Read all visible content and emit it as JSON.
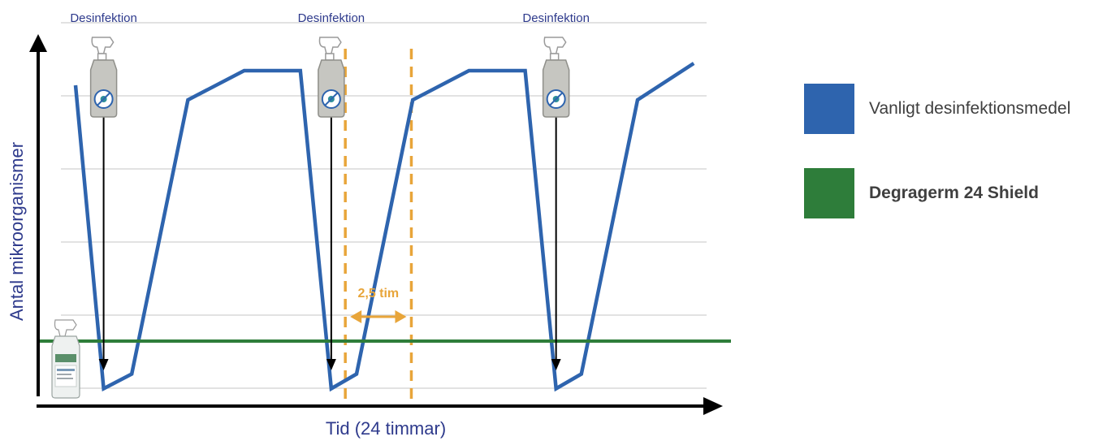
{
  "chart_data": {
    "type": "line",
    "xlabel": "Tid (24 timmar)",
    "ylabel": "Antal mikroorganismer",
    "disinfection_label": "Desinfektion",
    "disinfection_events": [
      {
        "label": "Desinfektion"
      },
      {
        "label": "Desinfektion"
      },
      {
        "label": "Desinfektion"
      }
    ],
    "annotation": {
      "text": "2,5 tim",
      "color": "#E8A53A"
    },
    "grid": true,
    "legend_position": "right",
    "series": [
      {
        "name": "Vanligt desinfektionsmedel",
        "color": "#2E64AE",
        "points": [
          [
            0.0,
            4.2
          ],
          [
            1.0,
            0.05
          ],
          [
            2.0,
            0.25
          ],
          [
            4.0,
            4.0
          ],
          [
            6.0,
            4.4
          ],
          [
            8.0,
            4.4
          ],
          [
            9.1,
            0.05
          ],
          [
            10.0,
            0.25
          ],
          [
            12.0,
            4.0
          ],
          [
            14.0,
            4.4
          ],
          [
            16.0,
            4.4
          ],
          [
            17.1,
            0.05
          ],
          [
            18.0,
            0.25
          ],
          [
            20.0,
            4.0
          ],
          [
            22.0,
            4.5
          ]
        ]
      },
      {
        "name": "Degragerm 24 Shield",
        "color": "#2E7D3A",
        "points": [
          [
            -1.0,
            0.7
          ],
          [
            23.0,
            0.7
          ]
        ]
      }
    ]
  },
  "legend": {
    "items": [
      {
        "label": "Vanligt desinfektionsmedel",
        "color": "#2E64AE",
        "bold": false
      },
      {
        "label": "Degragerm 24 Shield",
        "color": "#2E7D3A",
        "bold": true
      }
    ]
  },
  "icons": {
    "disinfectant_bottle": "spray-bottle-icon",
    "product_bottle": "degragerm-product-icon"
  }
}
